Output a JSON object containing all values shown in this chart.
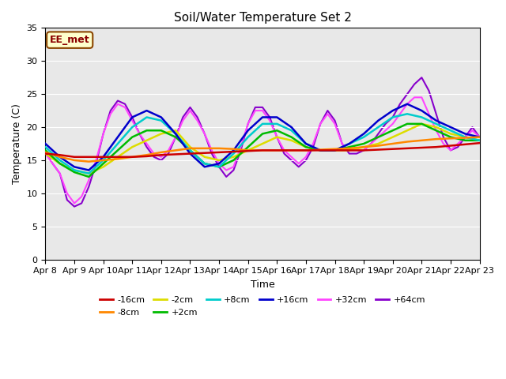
{
  "title": "Soil/Water Temperature Set 2",
  "xlabel": "Time",
  "ylabel": "Temperature (C)",
  "ylim": [
    0,
    35
  ],
  "yticks": [
    0,
    5,
    10,
    15,
    20,
    25,
    30,
    35
  ],
  "bg_color": "#e8e8e8",
  "fig_color": "#ffffff",
  "annotation": "EE_met",
  "series": {
    "-16cm": {
      "color": "#cc0000",
      "lw": 1.8,
      "zorder": 5,
      "x": [
        0,
        0.5,
        1,
        1.5,
        2,
        2.5,
        3,
        3.5,
        4,
        4.5,
        5,
        5.5,
        6,
        6.5,
        7,
        7.5,
        8,
        8.5,
        9,
        9.5,
        10,
        10.5,
        11,
        11.5,
        12,
        12.5,
        13,
        13.5,
        14,
        14.5,
        15
      ],
      "y": [
        16.0,
        15.8,
        15.5,
        15.5,
        15.5,
        15.5,
        15.5,
        15.6,
        15.8,
        15.9,
        16.0,
        16.1,
        16.2,
        16.3,
        16.4,
        16.5,
        16.5,
        16.5,
        16.5,
        16.5,
        16.5,
        16.5,
        16.5,
        16.6,
        16.7,
        16.8,
        16.9,
        17.0,
        17.2,
        17.4,
        17.6
      ]
    },
    "-8cm": {
      "color": "#ff8800",
      "lw": 1.8,
      "zorder": 4,
      "x": [
        0,
        0.5,
        1,
        1.5,
        2,
        2.5,
        3,
        3.5,
        4,
        4.5,
        5,
        5.5,
        6,
        6.5,
        7,
        7.5,
        8,
        8.5,
        9,
        9.5,
        10,
        10.5,
        11,
        11.5,
        12,
        12.5,
        13,
        13.5,
        14,
        14.5,
        15
      ],
      "y": [
        16.2,
        15.5,
        15.0,
        14.8,
        15.0,
        15.2,
        15.5,
        15.8,
        16.2,
        16.5,
        16.8,
        16.8,
        16.8,
        16.7,
        16.5,
        16.5,
        16.5,
        16.5,
        16.5,
        16.6,
        16.7,
        16.8,
        17.0,
        17.2,
        17.5,
        17.8,
        18.0,
        18.2,
        18.3,
        18.4,
        18.5
      ]
    },
    "-2cm": {
      "color": "#dddd00",
      "lw": 1.8,
      "zorder": 3,
      "x": [
        0,
        0.5,
        1,
        1.5,
        2,
        2.5,
        3,
        3.5,
        4,
        4.5,
        5,
        5.5,
        6,
        6.5,
        7,
        7.5,
        8,
        8.5,
        9,
        9.5,
        10,
        10.5,
        11,
        11.5,
        12,
        12.5,
        13,
        13.5,
        14,
        14.5,
        15
      ],
      "y": [
        16.0,
        14.5,
        13.5,
        13.0,
        14.0,
        15.5,
        17.0,
        18.0,
        19.0,
        19.5,
        17.0,
        15.5,
        15.0,
        15.5,
        16.5,
        17.5,
        18.5,
        18.0,
        17.0,
        16.5,
        16.5,
        16.5,
        17.0,
        17.5,
        18.5,
        19.5,
        20.5,
        20.0,
        19.0,
        18.5,
        18.0
      ]
    },
    "+2cm": {
      "color": "#00bb00",
      "lw": 1.8,
      "zorder": 3,
      "x": [
        0,
        0.5,
        1,
        1.5,
        2,
        2.5,
        3,
        3.5,
        4,
        4.5,
        5,
        5.5,
        6,
        6.5,
        7,
        7.5,
        8,
        8.5,
        9,
        9.5,
        10,
        10.5,
        11,
        11.5,
        12,
        12.5,
        13,
        13.5,
        14,
        14.5,
        15
      ],
      "y": [
        16.5,
        14.5,
        13.2,
        12.5,
        14.5,
        16.5,
        18.5,
        19.5,
        19.5,
        18.5,
        16.5,
        14.5,
        14.0,
        15.0,
        17.0,
        19.0,
        19.5,
        18.5,
        17.0,
        16.5,
        16.5,
        17.0,
        17.5,
        18.5,
        19.5,
        20.5,
        20.5,
        19.5,
        18.5,
        18.0,
        18.0
      ]
    },
    "+8cm": {
      "color": "#00cccc",
      "lw": 1.8,
      "zorder": 3,
      "x": [
        0,
        0.5,
        1,
        1.5,
        2,
        2.5,
        3,
        3.5,
        4,
        4.5,
        5,
        5.5,
        6,
        6.5,
        7,
        7.5,
        8,
        8.5,
        9,
        9.5,
        10,
        10.5,
        11,
        11.5,
        12,
        12.5,
        13,
        13.5,
        14,
        14.5,
        15
      ],
      "y": [
        17.0,
        15.0,
        13.5,
        13.0,
        15.0,
        17.5,
        20.0,
        21.5,
        21.0,
        19.0,
        16.5,
        14.5,
        14.0,
        16.0,
        18.5,
        20.5,
        20.5,
        19.5,
        17.5,
        16.5,
        16.5,
        17.5,
        18.5,
        20.0,
        21.5,
        22.0,
        21.5,
        20.5,
        19.5,
        18.5,
        18.0
      ]
    },
    "+16cm": {
      "color": "#0000cc",
      "lw": 1.8,
      "zorder": 3,
      "x": [
        0,
        0.5,
        1,
        1.5,
        2,
        2.5,
        3,
        3.5,
        4,
        4.5,
        5,
        5.5,
        6,
        6.5,
        7,
        7.5,
        8,
        8.5,
        9,
        9.5,
        10,
        10.5,
        11,
        11.5,
        12,
        12.5,
        13,
        13.5,
        14,
        14.5,
        15
      ],
      "y": [
        17.5,
        15.5,
        14.0,
        13.5,
        15.5,
        18.5,
        21.5,
        22.5,
        21.5,
        19.0,
        16.0,
        14.0,
        14.5,
        16.5,
        19.5,
        21.5,
        21.5,
        20.0,
        17.5,
        16.5,
        16.5,
        17.5,
        19.0,
        21.0,
        22.5,
        23.5,
        22.5,
        21.0,
        20.0,
        19.0,
        18.5
      ]
    },
    "+32cm": {
      "color": "#ff44ff",
      "lw": 1.5,
      "zorder": 2,
      "x": [
        0,
        0.25,
        0.5,
        0.75,
        1,
        1.25,
        1.5,
        1.75,
        2,
        2.25,
        2.5,
        2.75,
        3,
        3.25,
        3.5,
        3.75,
        4,
        4.25,
        4.5,
        4.75,
        5,
        5.25,
        5.5,
        5.75,
        6,
        6.25,
        6.5,
        6.75,
        7,
        7.25,
        7.5,
        7.75,
        8,
        8.25,
        8.5,
        8.75,
        9,
        9.25,
        9.5,
        9.75,
        10,
        10.25,
        10.5,
        10.75,
        11,
        11.25,
        11.5,
        11.75,
        12,
        12.25,
        12.5,
        12.75,
        13,
        13.25,
        13.5,
        13.75,
        14,
        14.25,
        14.5,
        14.75,
        15
      ],
      "y": [
        16.0,
        14.5,
        13.0,
        10.0,
        8.5,
        9.5,
        12.0,
        15.0,
        19.0,
        22.0,
        23.5,
        23.0,
        21.0,
        19.0,
        17.5,
        16.0,
        15.5,
        16.5,
        18.5,
        21.0,
        22.5,
        21.0,
        19.0,
        16.5,
        14.5,
        13.5,
        14.0,
        17.0,
        20.5,
        22.5,
        22.5,
        21.0,
        18.5,
        16.5,
        15.5,
        14.5,
        15.5,
        17.5,
        20.5,
        22.0,
        20.5,
        17.5,
        16.5,
        16.5,
        16.5,
        17.5,
        18.5,
        19.5,
        20.5,
        22.0,
        23.5,
        24.5,
        24.5,
        22.0,
        19.5,
        17.5,
        16.5,
        17.5,
        18.5,
        19.5,
        18.5
      ]
    },
    "+64cm": {
      "color": "#8800cc",
      "lw": 1.5,
      "zorder": 1,
      "x": [
        0,
        0.25,
        0.5,
        0.75,
        1,
        1.25,
        1.5,
        1.75,
        2,
        2.25,
        2.5,
        2.75,
        3,
        3.25,
        3.5,
        3.75,
        4,
        4.25,
        4.5,
        4.75,
        5,
        5.25,
        5.5,
        5.75,
        6,
        6.25,
        6.5,
        6.75,
        7,
        7.25,
        7.5,
        7.75,
        8,
        8.25,
        8.5,
        8.75,
        9,
        9.25,
        9.5,
        9.75,
        10,
        10.25,
        10.5,
        10.75,
        11,
        11.25,
        11.5,
        11.75,
        12,
        12.25,
        12.5,
        12.75,
        13,
        13.25,
        13.5,
        13.75,
        14,
        14.25,
        14.5,
        14.75,
        15
      ],
      "y": [
        16.2,
        14.5,
        13.0,
        9.0,
        8.0,
        8.5,
        11.0,
        14.5,
        19.0,
        22.5,
        24.0,
        23.5,
        21.5,
        19.0,
        17.0,
        15.5,
        15.0,
        16.0,
        18.5,
        21.5,
        23.0,
        21.5,
        19.0,
        16.0,
        14.0,
        12.5,
        13.5,
        16.5,
        20.5,
        23.0,
        23.0,
        21.5,
        18.5,
        16.0,
        15.0,
        14.0,
        15.0,
        17.0,
        20.5,
        22.5,
        21.0,
        17.5,
        16.0,
        16.0,
        16.5,
        17.5,
        19.0,
        20.5,
        21.5,
        23.5,
        25.0,
        26.5,
        27.5,
        25.5,
        22.0,
        18.5,
        16.5,
        17.0,
        18.5,
        20.0,
        18.5
      ]
    }
  },
  "xtick_positions": [
    0,
    1,
    2,
    3,
    4,
    5,
    6,
    7,
    8,
    9,
    10,
    11,
    12,
    13,
    14,
    15
  ],
  "xtick_labels": [
    "Apr 8",
    "Apr 9",
    "Apr 10",
    "Apr 11",
    "Apr 12",
    "Apr 13",
    "Apr 14",
    "Apr 15",
    "Apr 16",
    "Apr 17",
    "Apr 18",
    "Apr 19",
    "Apr 20",
    "Apr 21",
    "Apr 22",
    "Apr 23"
  ],
  "legend_order": [
    "-16cm",
    "-8cm",
    "-2cm",
    "+2cm",
    "+8cm",
    "+16cm",
    "+32cm",
    "+64cm"
  ],
  "legend_colors": {
    "-16cm": "#cc0000",
    "-8cm": "#ff8800",
    "-2cm": "#dddd00",
    "+2cm": "#00bb00",
    "+8cm": "#00cccc",
    "+16cm": "#0000cc",
    "+32cm": "#ff44ff",
    "+64cm": "#8800cc"
  }
}
